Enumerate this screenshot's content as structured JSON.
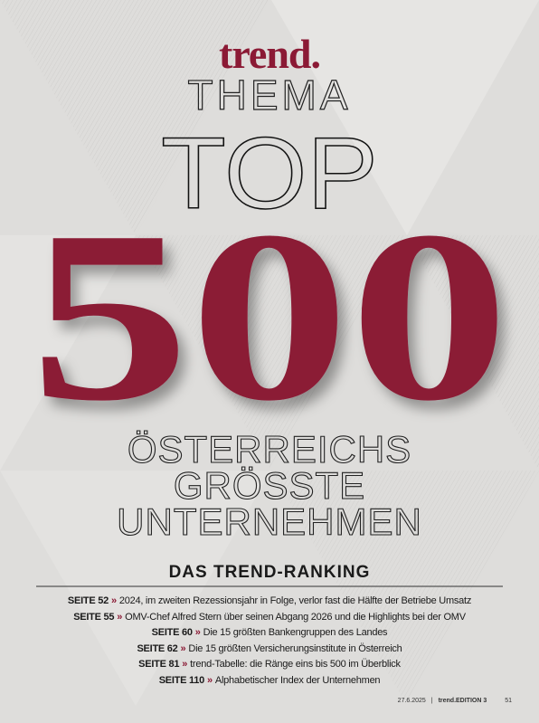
{
  "header": {
    "brand": "trend.",
    "section": "THEMA"
  },
  "headline": {
    "top": "TOP",
    "number": "500"
  },
  "subtitle": {
    "lines": [
      "ÖSTERREICHS",
      "GRÖSSTE",
      "UNTERNEHMEN"
    ],
    "kicker": "DAS TREND-RANKING"
  },
  "contents": [
    {
      "page": "SEITE 52",
      "marker": "»",
      "text": "2024, im zweiten Rezessionsjahr in Folge, verlor fast die Hälfte der Betriebe Umsatz"
    },
    {
      "page": "SEITE 55",
      "marker": "»",
      "text": "OMV-Chef Alfred Stern über seinen Abgang 2026 und die Highlights bei der OMV"
    },
    {
      "page": "SEITE 60",
      "marker": "»",
      "text": "Die 15 größten Bankengruppen des Landes"
    },
    {
      "page": "SEITE 62",
      "marker": "»",
      "text": "Die 15 größten Versicherungsinstitute in Österreich"
    },
    {
      "page": "SEITE 81",
      "marker": "»",
      "text": "trend-Tabelle: die Ränge eins bis 500 im Überblick"
    },
    {
      "page": "SEITE 110",
      "marker": "»",
      "text": "Alphabetischer Index der Unternehmen"
    }
  ],
  "footer": {
    "date": "27.6.2025",
    "separator": "|",
    "publication": "trend.EDITION 3",
    "page_number": "51"
  }
}
